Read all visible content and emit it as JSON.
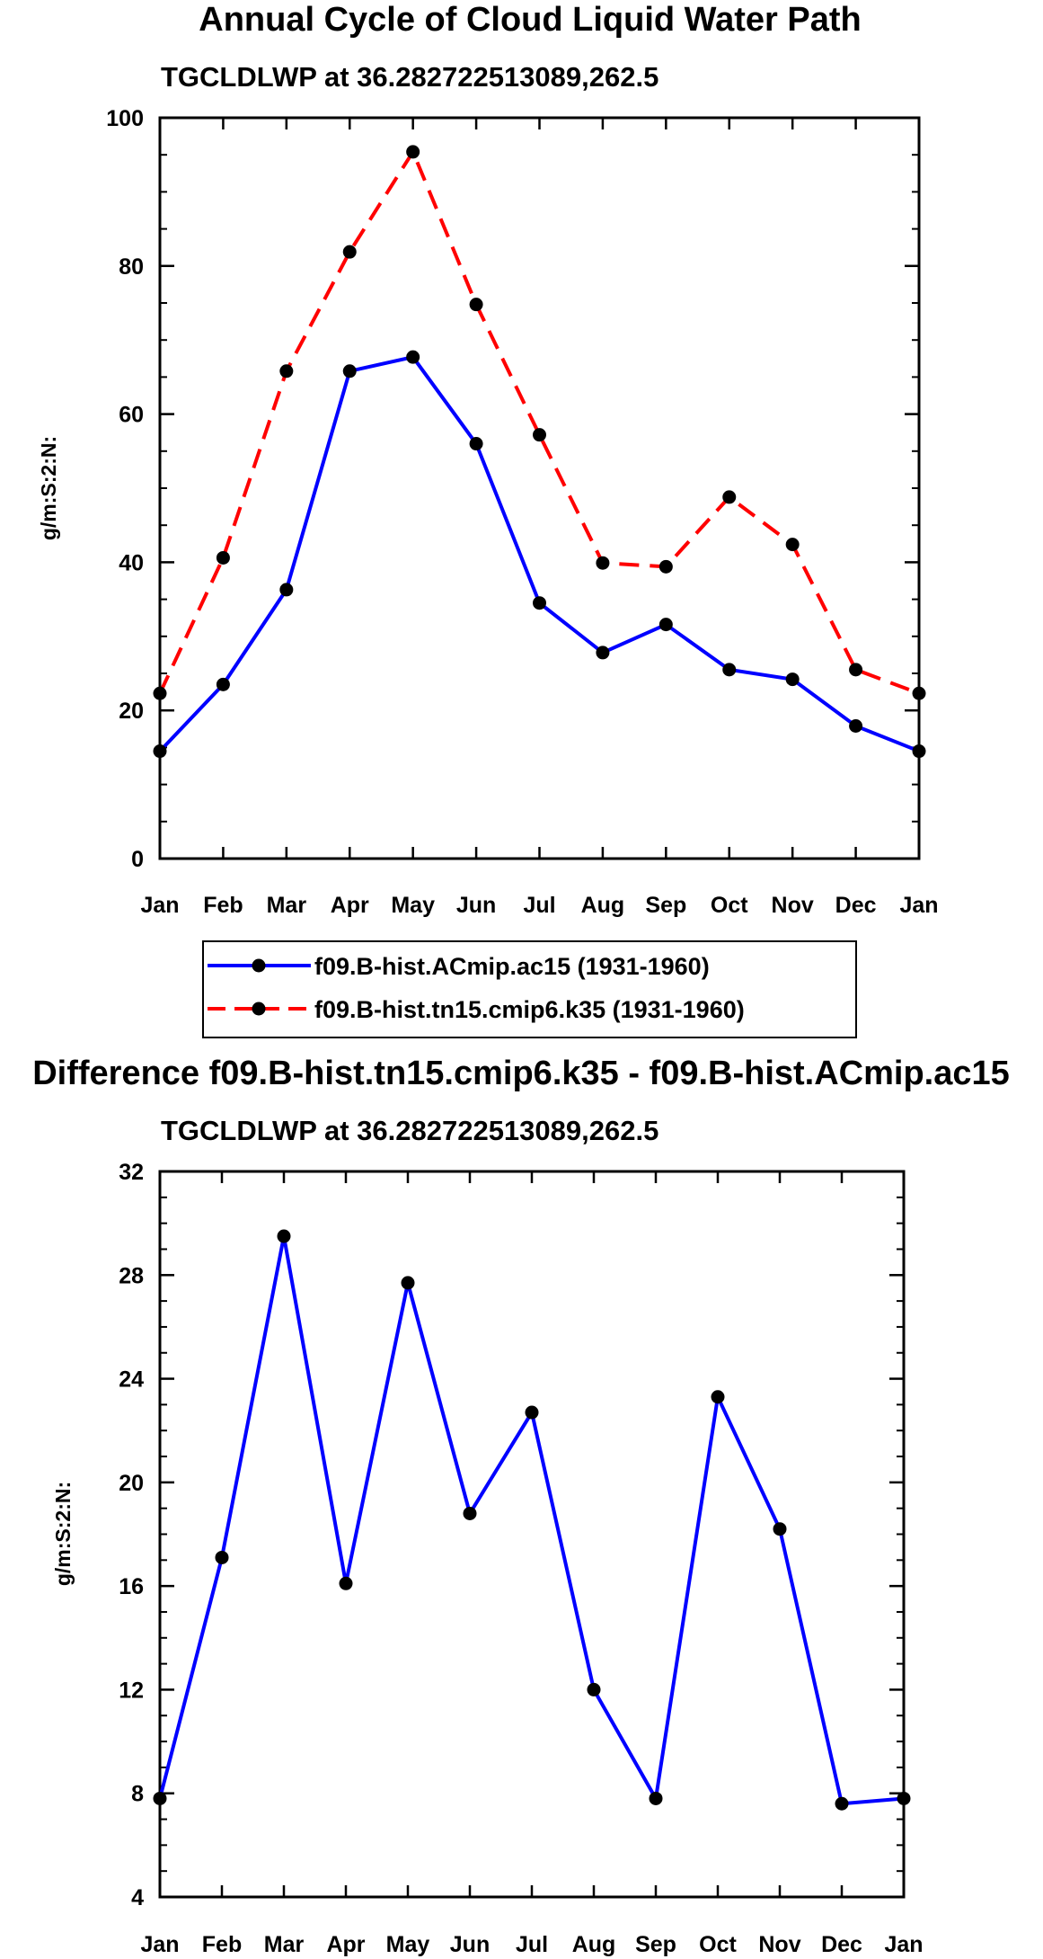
{
  "figure_title": "Annual Cycle of Cloud Liquid Water Path",
  "chart_data": [
    {
      "type": "line",
      "title": "Annual Cycle of Cloud Liquid Water Path",
      "subtitle": "TGCLDLWP at 36.282722513089,262.5",
      "xlabel": "",
      "ylabel": "g/m:S:2:N:",
      "categories": [
        "Jan",
        "Feb",
        "Mar",
        "Apr",
        "May",
        "Jun",
        "Jul",
        "Aug",
        "Sep",
        "Oct",
        "Nov",
        "Dec",
        "Jan"
      ],
      "ylim": [
        0,
        100
      ],
      "yticks": [
        0,
        20,
        40,
        60,
        80,
        100
      ],
      "ytick_labels": [
        "0",
        "20",
        "40",
        "60",
        "80",
        "100"
      ],
      "series": [
        {
          "name": "f09.B-hist.ACmip.ac15 (1931-1960)",
          "color": "#0000ff",
          "dash": "solid",
          "values": [
            14.5,
            23.5,
            36.3,
            65.8,
            67.7,
            56.0,
            34.5,
            27.8,
            31.6,
            25.5,
            24.2,
            17.9,
            14.5
          ]
        },
        {
          "name": "f09.B-hist.tn15.cmip6.k35 (1931-1960)",
          "color": "#ff0000",
          "dash": "dashed",
          "values": [
            22.3,
            40.6,
            65.8,
            81.9,
            95.4,
            74.8,
            57.2,
            39.9,
            39.4,
            48.8,
            42.4,
            25.5,
            22.3
          ]
        }
      ],
      "legend": "bottom"
    },
    {
      "type": "line",
      "title": "Difference f09.B-hist.tn15.cmip6.k35 - f09.B-hist.ACmip.ac15",
      "subtitle": "TGCLDLWP at 36.282722513089,262.5",
      "xlabel": "",
      "ylabel": "g/m:S:2:N:",
      "categories": [
        "Jan",
        "Feb",
        "Mar",
        "Apr",
        "May",
        "Jun",
        "Jul",
        "Aug",
        "Sep",
        "Oct",
        "Nov",
        "Dec",
        "Jan"
      ],
      "ylim": [
        4,
        32
      ],
      "yticks": [
        4,
        8,
        12,
        16,
        20,
        24,
        28,
        32
      ],
      "ytick_labels": [
        "4",
        "8",
        "12",
        "16",
        "20",
        "24",
        "28",
        "32"
      ],
      "series": [
        {
          "name": "Difference",
          "color": "#0000ff",
          "dash": "solid",
          "values": [
            7.8,
            17.1,
            29.5,
            16.1,
            27.7,
            18.8,
            22.7,
            12.0,
            7.8,
            23.3,
            18.2,
            7.6,
            7.8
          ]
        }
      ]
    }
  ]
}
